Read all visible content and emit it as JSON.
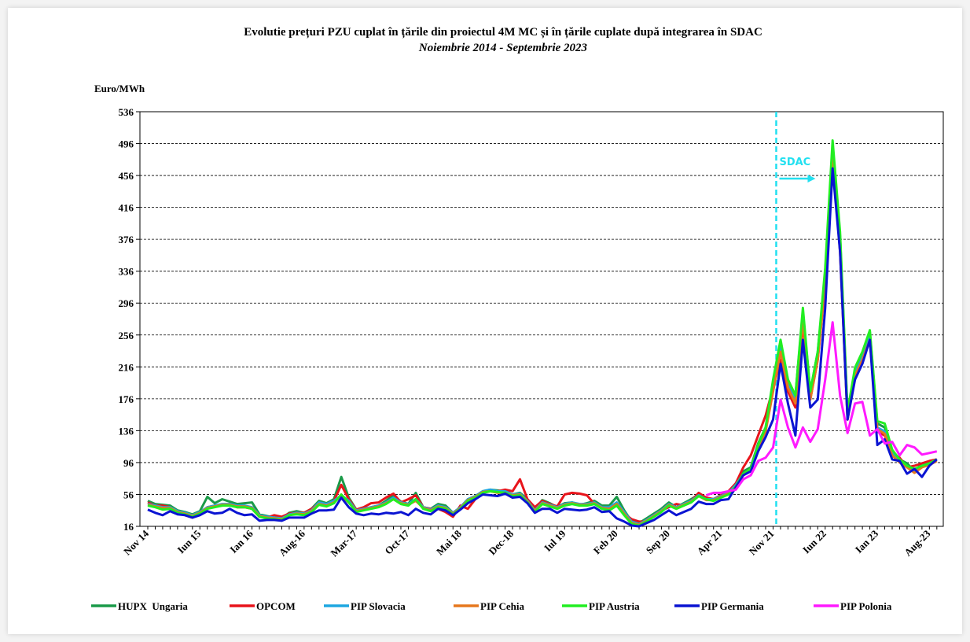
{
  "chart_data": {
    "type": "line",
    "title": "Evolutie prețuri PZU cuplat în țările din proiectul 4M MC și în țările cuplate după integrarea în SDAC",
    "subtitle": "Noiembrie 2014 - Septembrie 2023",
    "y_label": "Euro/MWh",
    "categories": [
      "Nov 14",
      null,
      null,
      null,
      null,
      null,
      null,
      "Iun 15",
      null,
      null,
      null,
      null,
      null,
      null,
      "Ian 16",
      null,
      null,
      null,
      null,
      null,
      null,
      "Aug-16",
      null,
      null,
      null,
      null,
      null,
      null,
      "Mar-17",
      null,
      null,
      null,
      null,
      null,
      null,
      "Oct-17",
      null,
      null,
      null,
      null,
      null,
      null,
      "Mai 18",
      null,
      null,
      null,
      null,
      null,
      null,
      "Dec-18",
      null,
      null,
      null,
      null,
      null,
      null,
      "Iul 19",
      null,
      null,
      null,
      null,
      null,
      null,
      "Feb 20",
      null,
      null,
      null,
      null,
      null,
      null,
      "Sep 20",
      null,
      null,
      null,
      null,
      null,
      null,
      "Apr 21",
      null,
      null,
      null,
      null,
      null,
      null,
      "Nov 21",
      null,
      null,
      null,
      null,
      null,
      null,
      "Iun 22",
      null,
      null,
      null,
      null,
      null,
      null,
      "Ian 23",
      null,
      null,
      null,
      null,
      null,
      null,
      "Aug-23",
      null
    ],
    "ylim": [
      16,
      536
    ],
    "yticks": [
      16,
      56,
      96,
      136,
      176,
      216,
      256,
      296,
      336,
      376,
      416,
      456,
      496,
      536
    ],
    "grid": true,
    "legend": "bottom",
    "marker": {
      "label": "SDAC",
      "category": "Nov 21",
      "color": "#22e0f0"
    },
    "series": [
      {
        "name": "HUPX  Ungaria",
        "color": "#1a9a48",
        "values": [
          48,
          44,
          43,
          42,
          36,
          34,
          31,
          35,
          53,
          45,
          50,
          47,
          44,
          45,
          46,
          31,
          29,
          27,
          26,
          33,
          35,
          33,
          38,
          48,
          45,
          50,
          78,
          52,
          37,
          38,
          40,
          42,
          48,
          55,
          47,
          44,
          58,
          40,
          38,
          44,
          42,
          33,
          40,
          50,
          54,
          60,
          62,
          61,
          60,
          56,
          58,
          50,
          37,
          49,
          45,
          40,
          45,
          46,
          43,
          45,
          48,
          42,
          42,
          53,
          36,
          22,
          20,
          26,
          32,
          38,
          46,
          40,
          45,
          50,
          56,
          52,
          50,
          55,
          58,
          70,
          85,
          90,
          120,
          140,
          195,
          245,
          200,
          180,
          285,
          185,
          235,
          330,
          495,
          380,
          155,
          210,
          230,
          260,
          145,
          140,
          110,
          100,
          95,
          85,
          95,
          95,
          100
        ]
      },
      {
        "name": "OPCOM",
        "color": "#e8141b",
        "values": [
          46,
          42,
          42,
          40,
          34,
          30,
          27,
          33,
          40,
          42,
          42,
          44,
          40,
          40,
          38,
          28,
          27,
          30,
          28,
          32,
          33,
          33,
          38,
          45,
          44,
          48,
          68,
          50,
          37,
          40,
          45,
          46,
          52,
          57,
          46,
          50,
          55,
          40,
          38,
          38,
          34,
          28,
          42,
          38,
          50,
          58,
          60,
          60,
          62,
          60,
          75,
          50,
          40,
          48,
          44,
          41,
          56,
          58,
          57,
          55,
          44,
          40,
          38,
          44,
          32,
          25,
          22,
          22,
          30,
          36,
          40,
          44,
          42,
          48,
          58,
          52,
          50,
          55,
          60,
          70,
          90,
          105,
          130,
          155,
          190,
          225,
          185,
          165,
          270,
          175,
          225,
          320,
          485,
          360,
          150,
          205,
          225,
          250,
          135,
          130,
          108,
          102,
          90,
          92,
          95,
          98,
          100
        ]
      },
      {
        "name": "PIP Slovacia",
        "color": "#1ea7e1",
        "values": [
          44,
          42,
          40,
          40,
          35,
          33,
          30,
          34,
          40,
          42,
          44,
          44,
          42,
          42,
          40,
          30,
          28,
          27,
          26,
          31,
          33,
          32,
          36,
          46,
          44,
          48,
          55,
          48,
          36,
          38,
          40,
          42,
          46,
          52,
          46,
          44,
          50,
          40,
          37,
          42,
          40,
          33,
          40,
          50,
          54,
          60,
          62,
          60,
          60,
          56,
          57,
          48,
          36,
          46,
          43,
          40,
          44,
          46,
          44,
          44,
          46,
          40,
          40,
          46,
          34,
          22,
          19,
          24,
          30,
          36,
          44,
          40,
          44,
          48,
          55,
          50,
          50,
          54,
          58,
          68,
          82,
          88,
          118,
          138,
          190,
          240,
          195,
          175,
          280,
          180,
          230,
          325,
          490,
          375,
          155,
          208,
          228,
          255,
          140,
          135,
          108,
          98,
          92,
          85,
          92,
          95,
          100
        ]
      },
      {
        "name": "PIP Cehia",
        "color": "#e6781e",
        "values": [
          43,
          41,
          39,
          39,
          34,
          32,
          29,
          33,
          39,
          41,
          43,
          43,
          41,
          41,
          39,
          29,
          27,
          26,
          25,
          30,
          32,
          31,
          35,
          44,
          42,
          46,
          54,
          46,
          35,
          37,
          39,
          41,
          45,
          50,
          45,
          43,
          48,
          39,
          36,
          41,
          39,
          32,
          39,
          49,
          53,
          59,
          60,
          58,
          58,
          55,
          56,
          47,
          35,
          45,
          42,
          39,
          43,
          45,
          43,
          43,
          45,
          39,
          38,
          44,
          32,
          20,
          18,
          23,
          29,
          35,
          43,
          39,
          43,
          47,
          54,
          49,
          49,
          53,
          57,
          66,
          80,
          86,
          115,
          135,
          185,
          235,
          190,
          170,
          275,
          175,
          225,
          320,
          485,
          370,
          150,
          205,
          225,
          250,
          138,
          132,
          105,
          96,
          90,
          83,
          90,
          93,
          98
        ]
      },
      {
        "name": "PIP Austria",
        "color": "#22ee22",
        "values": [
          42,
          40,
          37,
          38,
          33,
          31,
          28,
          32,
          38,
          40,
          42,
          42,
          40,
          40,
          38,
          28,
          26,
          25,
          24,
          30,
          31,
          30,
          34,
          43,
          41,
          45,
          56,
          46,
          34,
          36,
          38,
          40,
          44,
          50,
          44,
          42,
          50,
          38,
          35,
          40,
          38,
          31,
          38,
          48,
          52,
          58,
          60,
          59,
          58,
          54,
          55,
          46,
          34,
          44,
          41,
          38,
          42,
          44,
          42,
          42,
          44,
          38,
          36,
          42,
          30,
          19,
          17,
          22,
          28,
          34,
          42,
          38,
          42,
          46,
          54,
          50,
          48,
          52,
          56,
          66,
          82,
          88,
          118,
          140,
          200,
          250,
          200,
          180,
          290,
          185,
          235,
          340,
          500,
          385,
          160,
          215,
          235,
          262,
          148,
          145,
          112,
          100,
          92,
          88,
          92,
          95,
          100
        ]
      },
      {
        "name": "PIP Germania",
        "color": "#0a14d2",
        "values": [
          37,
          33,
          30,
          35,
          31,
          30,
          27,
          30,
          35,
          32,
          33,
          38,
          33,
          30,
          31,
          23,
          24,
          24,
          23,
          27,
          27,
          27,
          32,
          36,
          36,
          37,
          52,
          40,
          32,
          30,
          32,
          31,
          33,
          32,
          34,
          30,
          38,
          33,
          31,
          38,
          36,
          30,
          37,
          45,
          50,
          56,
          55,
          54,
          57,
          52,
          53,
          45,
          33,
          38,
          38,
          33,
          38,
          37,
          36,
          37,
          40,
          34,
          35,
          26,
          22,
          17,
          16,
          20,
          24,
          30,
          36,
          30,
          34,
          38,
          47,
          44,
          44,
          49,
          50,
          65,
          80,
          85,
          110,
          128,
          150,
          220,
          170,
          130,
          250,
          165,
          175,
          290,
          465,
          360,
          150,
          200,
          220,
          250,
          118,
          125,
          100,
          98,
          82,
          88,
          78,
          92,
          100
        ]
      },
      {
        "name": "PIP Polonia",
        "color": "#ff1aff",
        "values": [
          null,
          null,
          null,
          null,
          null,
          null,
          null,
          null,
          null,
          null,
          null,
          null,
          null,
          null,
          null,
          null,
          null,
          null,
          null,
          null,
          null,
          null,
          null,
          null,
          null,
          null,
          null,
          null,
          null,
          null,
          null,
          null,
          null,
          null,
          null,
          null,
          null,
          null,
          null,
          null,
          null,
          null,
          null,
          null,
          null,
          null,
          null,
          null,
          null,
          null,
          null,
          null,
          null,
          null,
          null,
          null,
          null,
          null,
          null,
          null,
          null,
          null,
          null,
          null,
          null,
          null,
          null,
          null,
          null,
          null,
          null,
          null,
          null,
          null,
          null,
          55,
          58,
          58,
          60,
          62,
          75,
          80,
          98,
          102,
          115,
          175,
          140,
          115,
          140,
          122,
          138,
          200,
          272,
          180,
          133,
          170,
          172,
          130,
          138,
          120,
          122,
          105,
          118,
          115,
          106,
          108,
          110
        ]
      }
    ]
  }
}
